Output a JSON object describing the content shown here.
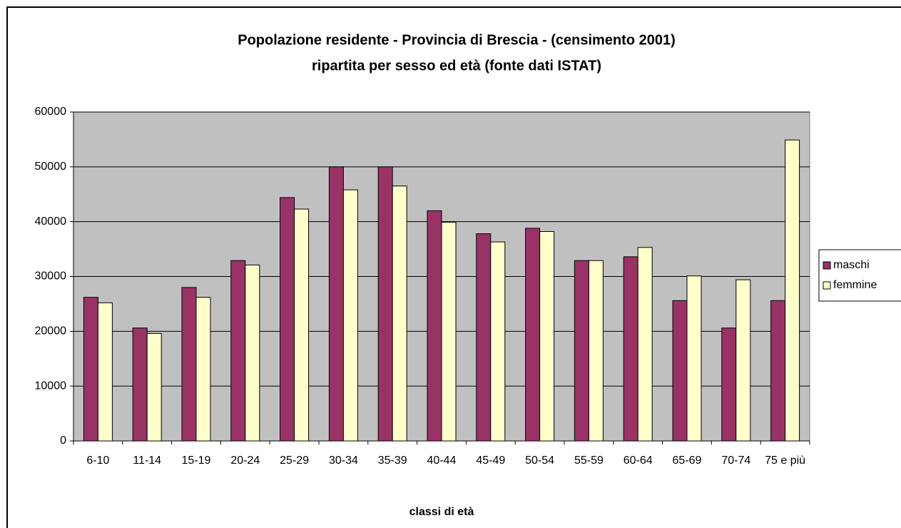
{
  "chart_data": {
    "type": "bar",
    "title": "Popolazione residente - Provincia di Brescia - (censimento 2001)",
    "subtitle": "ripartita per sesso ed età (fonte dati ISTAT)",
    "x_label": "classi di età",
    "categories": [
      "6-10",
      "11-14",
      "15-19",
      "20-24",
      "25-29",
      "30-34",
      "35-39",
      "40-44",
      "45-49",
      "50-54",
      "55-59",
      "60-64",
      "65-69",
      "70-74",
      "75 e più"
    ],
    "series": [
      {
        "name": "maschi",
        "color": "#993366",
        "values": [
          26200,
          20600,
          28000,
          32900,
          44400,
          50000,
          50000,
          42000,
          37800,
          38800,
          32900,
          33600,
          25600,
          20600,
          25600
        ]
      },
      {
        "name": "femmine",
        "color": "#ffffcc",
        "values": [
          25200,
          19600,
          26200,
          32100,
          42300,
          45800,
          46500,
          39900,
          36300,
          38200,
          32900,
          35300,
          30100,
          29400,
          54900
        ]
      }
    ],
    "ylim": [
      0,
      60000
    ],
    "yticks": [
      0,
      10000,
      20000,
      30000,
      40000,
      50000,
      60000
    ],
    "grid": true,
    "legend": "right"
  }
}
